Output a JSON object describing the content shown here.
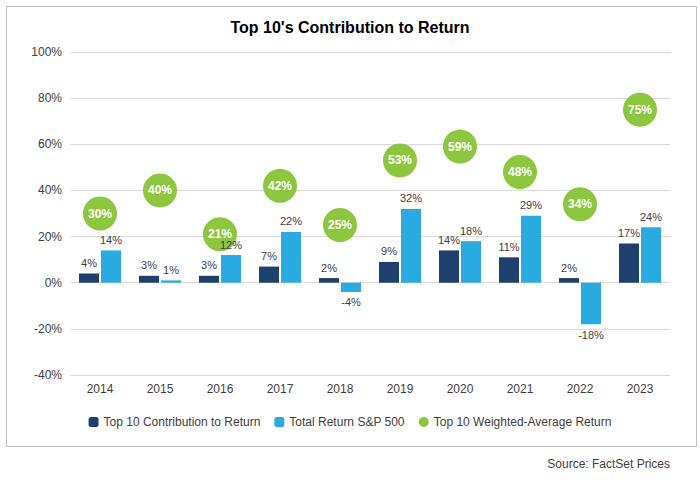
{
  "chart_data": {
    "type": "bar",
    "title": "Top 10's Contribution to Return",
    "categories": [
      "2014",
      "2015",
      "2016",
      "2017",
      "2018",
      "2019",
      "2020",
      "2021",
      "2022",
      "2023"
    ],
    "series": [
      {
        "name": "Top 10 Contribution to Return",
        "type": "bar",
        "color": "#1f3f6e",
        "values": [
          4,
          3,
          3,
          7,
          2,
          9,
          14,
          11,
          2,
          17
        ],
        "value_labels": [
          "4%",
          "3%",
          "3%",
          "7%",
          "2%",
          "9%",
          "14%",
          "11%",
          "2%",
          "17%"
        ]
      },
      {
        "name": "Total Return S&P 500",
        "type": "bar",
        "color": "#29abe2",
        "values": [
          14,
          1,
          12,
          22,
          -4,
          32,
          18,
          29,
          -18,
          24
        ],
        "value_labels": [
          "14%",
          "1%",
          "12%",
          "22%",
          "-4%",
          "32%",
          "18%",
          "29%",
          "-18%",
          "24%"
        ]
      },
      {
        "name": "Top 10 Weighted-Average Return",
        "type": "scatter",
        "color": "#8dc63f",
        "marker": "circle",
        "values": [
          30,
          40,
          21,
          42,
          25,
          53,
          59,
          48,
          34,
          75
        ],
        "value_labels": [
          "30%",
          "40%",
          "21%",
          "42%",
          "25%",
          "53%",
          "59%",
          "48%",
          "34%",
          "75%"
        ]
      }
    ],
    "ylim": [
      -40,
      100
    ],
    "yticks": [
      {
        "value": -40,
        "label": "-40%"
      },
      {
        "value": -20,
        "label": "-20%"
      },
      {
        "value": 0,
        "label": "0%"
      },
      {
        "value": 20,
        "label": "20%"
      },
      {
        "value": 40,
        "label": "40%"
      },
      {
        "value": 60,
        "label": "60%"
      },
      {
        "value": 80,
        "label": "80%"
      },
      {
        "value": 100,
        "label": "100%"
      }
    ],
    "grid": true,
    "legend": "bottom",
    "data_labels": true,
    "annotations": [
      "Source: FactSet Prices"
    ]
  }
}
